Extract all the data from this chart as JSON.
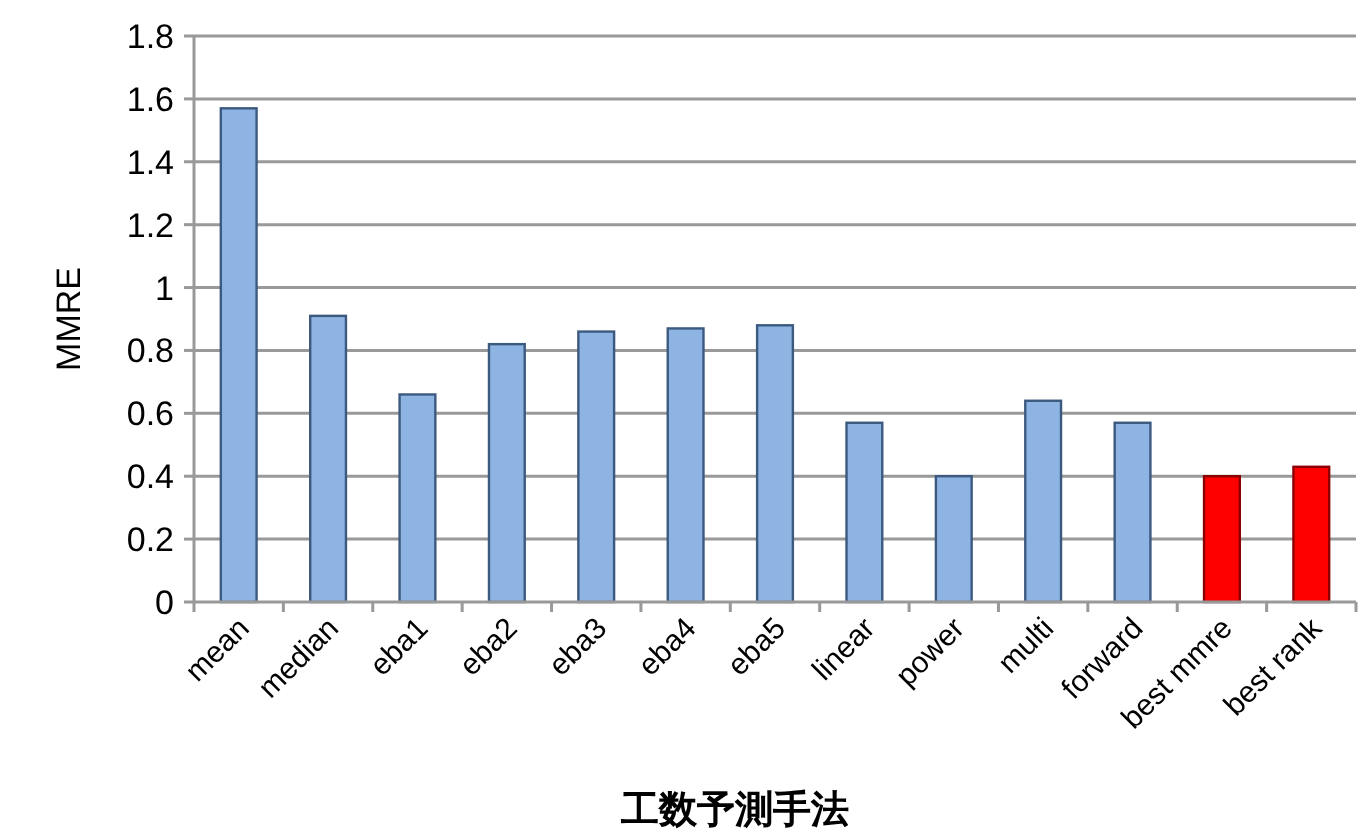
{
  "chart_data": {
    "type": "bar",
    "xlabel": "工数予測手法",
    "ylabel": "MMRE",
    "categories": [
      "mean",
      "median",
      "eba1",
      "eba2",
      "eba3",
      "eba4",
      "eba5",
      "linear",
      "power",
      "multi",
      "forward",
      "best mmre",
      "best rank"
    ],
    "values": [
      1.57,
      0.91,
      0.66,
      0.82,
      0.86,
      0.87,
      0.88,
      0.57,
      0.4,
      0.64,
      0.57,
      0.4,
      0.43
    ],
    "colors": [
      "#8db4e2",
      "#8db4e2",
      "#8db4e2",
      "#8db4e2",
      "#8db4e2",
      "#8db4e2",
      "#8db4e2",
      "#8db4e2",
      "#8db4e2",
      "#8db4e2",
      "#8db4e2",
      "#ff0000",
      "#ff0000"
    ],
    "ylim": [
      0,
      1.8
    ],
    "yticks": [
      0,
      0.2,
      0.4,
      0.6,
      0.8,
      1,
      1.2,
      1.4,
      1.6,
      1.8
    ],
    "grid": "y"
  }
}
